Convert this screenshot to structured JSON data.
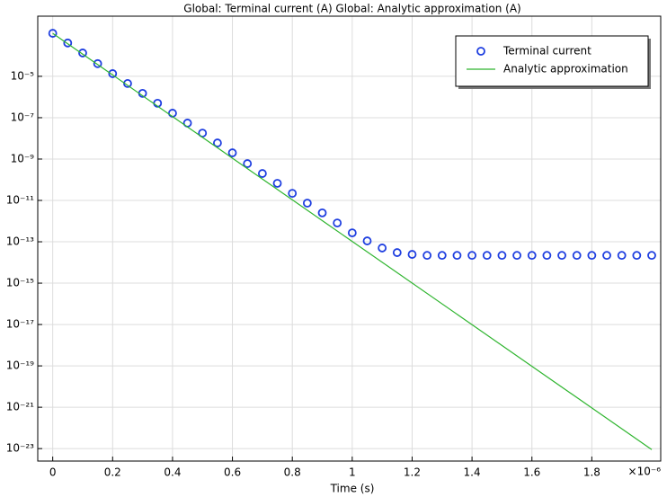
{
  "chart_data": {
    "type": "scatter",
    "title": "Global: Terminal current (A)  Global: Analytic approximation (A)",
    "xlabel": "Time (s)",
    "x_multiplier": "×10⁻⁶",
    "log_y": true,
    "grid": true,
    "legend": "upper right",
    "xlim": [
      -0.05,
      2.03
    ],
    "ylim": [
      0.0081,
      2.5e-24
    ],
    "xticks": [
      0,
      0.2,
      0.4,
      0.6,
      0.8,
      1,
      1.2,
      1.4,
      1.6,
      1.8
    ],
    "yticks": [
      {
        "value": 1e-05,
        "label": "10⁻⁵"
      },
      {
        "value": 1e-07,
        "label": "10⁻⁷"
      },
      {
        "value": 1e-09,
        "label": "10⁻⁹"
      },
      {
        "value": 1e-11,
        "label": "10⁻¹¹"
      },
      {
        "value": 1e-13,
        "label": "10⁻¹³"
      },
      {
        "value": 1e-15,
        "label": "10⁻¹⁵"
      },
      {
        "value": 1e-17,
        "label": "10⁻¹⁷"
      },
      {
        "value": 1e-19,
        "label": "10⁻¹⁹"
      },
      {
        "value": 1e-21,
        "label": "10⁻²¹"
      },
      {
        "value": 1e-23,
        "label": "10⁻²³"
      }
    ],
    "series": [
      {
        "name": "Terminal current",
        "color": "#1f3fe0",
        "style": "markers",
        "x": [
          0,
          0.05,
          0.1,
          0.15,
          0.2,
          0.25,
          0.3,
          0.35,
          0.4,
          0.45,
          0.5,
          0.55,
          0.6,
          0.65,
          0.7,
          0.75,
          0.8,
          0.85,
          0.9,
          0.95,
          1,
          1.05,
          1.1,
          1.15,
          1.2,
          1.25,
          1.3,
          1.35,
          1.4,
          1.45,
          1.5,
          1.55,
          1.6,
          1.65,
          1.7,
          1.75,
          1.8,
          1.85,
          1.9,
          1.95,
          2
        ],
        "values": [
          0.0012,
          0.00041,
          0.000135,
          4.1e-05,
          1.35e-05,
          4.5e-06,
          1.5e-06,
          5e-07,
          1.65e-07,
          5.5e-08,
          1.8e-08,
          6e-09,
          2e-09,
          6e-10,
          2e-10,
          6.7e-11,
          2.2e-11,
          7.4e-12,
          2.5e-12,
          8.1e-13,
          2.7e-13,
          1.1e-13,
          5e-14,
          3e-14,
          2.45e-14,
          2.2e-14,
          2.2e-14,
          2.2e-14,
          2.2e-14,
          2.2e-14,
          2.2e-14,
          2.2e-14,
          2.2e-14,
          2.2e-14,
          2.2e-14,
          2.2e-14,
          2.2e-14,
          2.2e-14,
          2.2e-14,
          2.2e-14,
          2.2e-14
        ]
      },
      {
        "name": "Analytic approximation",
        "color": "#2fb52f",
        "style": "line",
        "x": [
          0,
          2
        ],
        "values": [
          0.0012,
          9e-24
        ]
      }
    ]
  }
}
